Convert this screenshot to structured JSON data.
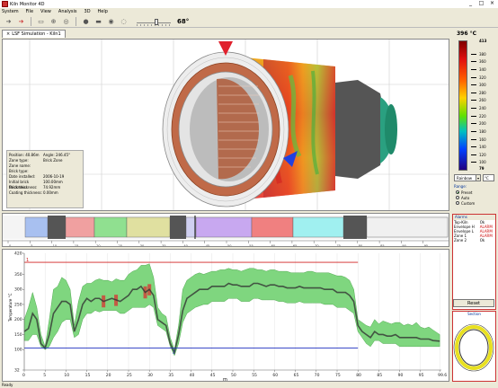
{
  "window": {
    "title": "Kiln Monitor 4D",
    "min": "_",
    "max": "□",
    "close": "×"
  },
  "menu": [
    "System",
    "File",
    "View",
    "Analysis",
    "3D",
    "Help"
  ],
  "toolbar": {
    "angle": "68°",
    "slider_fraction": 0.6
  },
  "tab": {
    "label": "LSF Simulation - Kiln1",
    "close": "×"
  },
  "temperature_readout": "396 °C",
  "info": {
    "rows": [
      {
        "k": "Position: 40.86m",
        "v": "Angle: 246.45°"
      },
      {
        "k": "Zone type:",
        "v": "Brick Zone"
      },
      {
        "k": "Zone name:",
        "v": ""
      },
      {
        "k": "Brick type:",
        "v": ""
      },
      {
        "k": "Date installed:",
        "v": "2006-10-19"
      },
      {
        "k": "Initial brick thickness:",
        "v": "100.00mm"
      },
      {
        "k": "Brick thickness:",
        "v": "74.92mm"
      },
      {
        "k": "Coating thickness:",
        "v": "0.00mm"
      }
    ]
  },
  "scale": {
    "max": "413",
    "min": "79",
    "ticks": [
      "380",
      "360",
      "340",
      "320",
      "300",
      "280",
      "260",
      "240",
      "220",
      "200",
      "180",
      "160",
      "140",
      "120",
      "100"
    ],
    "palette": "Rainbow",
    "palette_arrow": "▾",
    "unit": "°C",
    "range_label": "Range:",
    "range_options": [
      {
        "label": "Preset",
        "selected": true
      },
      {
        "label": "Auto",
        "selected": false
      },
      {
        "label": "Custom",
        "selected": false
      }
    ]
  },
  "strip_ticks": [
    "0",
    "5",
    "10",
    "15",
    "20",
    "25",
    "30",
    "35",
    "40",
    "45",
    "50",
    "55",
    "60",
    "65",
    "70",
    "75",
    "80",
    "85",
    "90",
    "95"
  ],
  "chart_data": {
    "type": "area",
    "xlabel": "m",
    "ylabel": "Temperature °C",
    "xlim": [
      0,
      100
    ],
    "ylim": [
      32,
      420
    ],
    "x_ticks": [
      "0",
      "5",
      "10",
      "15",
      "20",
      "25",
      "30",
      "35",
      "40",
      "45",
      "50",
      "55",
      "60",
      "65",
      "70",
      "75",
      "80",
      "85",
      "90",
      "95",
      "99.6"
    ],
    "y_ticks": [
      "420",
      "350",
      "300",
      "250",
      "200",
      "150",
      "100",
      "32"
    ],
    "limit_high": {
      "label": "1",
      "value": 390,
      "x_from": 0,
      "x_to": 80
    },
    "limit_low": {
      "label": "2",
      "value": 105,
      "x_from": 0,
      "x_to": 80
    },
    "x": [
      0,
      1,
      2,
      3,
      4,
      5,
      6,
      7,
      8,
      9,
      10,
      11,
      12,
      13,
      14,
      15,
      16,
      17,
      18,
      19,
      20,
      21,
      22,
      23,
      24,
      25,
      26,
      27,
      28,
      29,
      30,
      31,
      32,
      33,
      34,
      35,
      36,
      37,
      38,
      39,
      40,
      41,
      42,
      43,
      44,
      45,
      46,
      47,
      48,
      49,
      50,
      51,
      52,
      53,
      54,
      55,
      56,
      57,
      58,
      59,
      60,
      61,
      62,
      63,
      64,
      65,
      66,
      67,
      68,
      69,
      70,
      71,
      72,
      73,
      74,
      75,
      76,
      77,
      78,
      79,
      80,
      81,
      82,
      83,
      84,
      85,
      86,
      87,
      88,
      89,
      90,
      91,
      92,
      93,
      94,
      95,
      96,
      97,
      98,
      99.6
    ],
    "series": [
      {
        "role": "envelope_max",
        "values": [
          200,
          240,
          290,
          240,
          150,
          110,
          200,
          300,
          310,
          340,
          330,
          300,
          180,
          260,
          310,
          320,
          320,
          330,
          335,
          330,
          330,
          325,
          335,
          330,
          330,
          350,
          360,
          365,
          380,
          380,
          385,
          340,
          240,
          220,
          210,
          140,
          100,
          180,
          300,
          330,
          340,
          350,
          355,
          350,
          355,
          360,
          360,
          365,
          365,
          370,
          365,
          365,
          360,
          365,
          370,
          370,
          365,
          365,
          360,
          365,
          365,
          360,
          360,
          360,
          355,
          355,
          355,
          355,
          360,
          360,
          355,
          355,
          355,
          355,
          350,
          345,
          345,
          340,
          330,
          300,
          200,
          190,
          180,
          175,
          200,
          185,
          195,
          190,
          185,
          190,
          190,
          180,
          185,
          180,
          190,
          175,
          170,
          175,
          165,
          150
        ]
      },
      {
        "role": "envelope_min",
        "values": [
          130,
          130,
          150,
          150,
          110,
          100,
          110,
          140,
          160,
          190,
          200,
          200,
          140,
          150,
          200,
          220,
          220,
          230,
          225,
          230,
          230,
          230,
          230,
          220,
          220,
          230,
          240,
          240,
          240,
          240,
          250,
          240,
          180,
          170,
          160,
          110,
          80,
          120,
          190,
          220,
          230,
          240,
          245,
          250,
          250,
          260,
          260,
          260,
          260,
          270,
          270,
          270,
          260,
          260,
          260,
          270,
          270,
          265,
          265,
          265,
          265,
          260,
          260,
          255,
          255,
          255,
          260,
          255,
          255,
          255,
          255,
          255,
          250,
          250,
          250,
          240,
          240,
          240,
          230,
          220,
          160,
          140,
          120,
          110,
          130,
          130,
          120,
          120,
          120,
          120,
          110,
          110,
          110,
          110,
          110,
          110,
          110,
          110,
          110,
          110
        ]
      },
      {
        "role": "current",
        "values": [
          160,
          170,
          220,
          200,
          120,
          105,
          150,
          220,
          240,
          260,
          260,
          250,
          160,
          200,
          250,
          270,
          260,
          270,
          270,
          260,
          265,
          270,
          265,
          260,
          270,
          280,
          300,
          300,
          310,
          290,
          300,
          280,
          200,
          190,
          180,
          120,
          90,
          150,
          230,
          270,
          280,
          290,
          300,
          300,
          300,
          310,
          310,
          310,
          310,
          320,
          315,
          315,
          310,
          310,
          310,
          320,
          320,
          315,
          310,
          315,
          315,
          310,
          310,
          305,
          305,
          305,
          310,
          305,
          305,
          305,
          305,
          305,
          300,
          300,
          300,
          290,
          290,
          290,
          280,
          260,
          180,
          160,
          150,
          140,
          160,
          150,
          150,
          145,
          145,
          150,
          140,
          140,
          140,
          140,
          140,
          135,
          135,
          135,
          130,
          128
        ]
      }
    ]
  },
  "alarms": {
    "title": "Alarms",
    "rows": [
      {
        "name": "Top-Kiln",
        "status": "Ok"
      },
      {
        "name": "Envelope H",
        "status": "ALARM"
      },
      {
        "name": "Envelope L",
        "status": "ALARM"
      },
      {
        "name": "Zone 1",
        "status": "ALARM"
      },
      {
        "name": "Zone 2",
        "status": "Ok"
      }
    ],
    "reset": "Reset"
  },
  "section": {
    "title": "Section"
  },
  "status": "Ready",
  "colors": {
    "accent": "#c33333",
    "envelope": "#7fd67f",
    "hot": "#d93030",
    "brick": "#b06040"
  }
}
